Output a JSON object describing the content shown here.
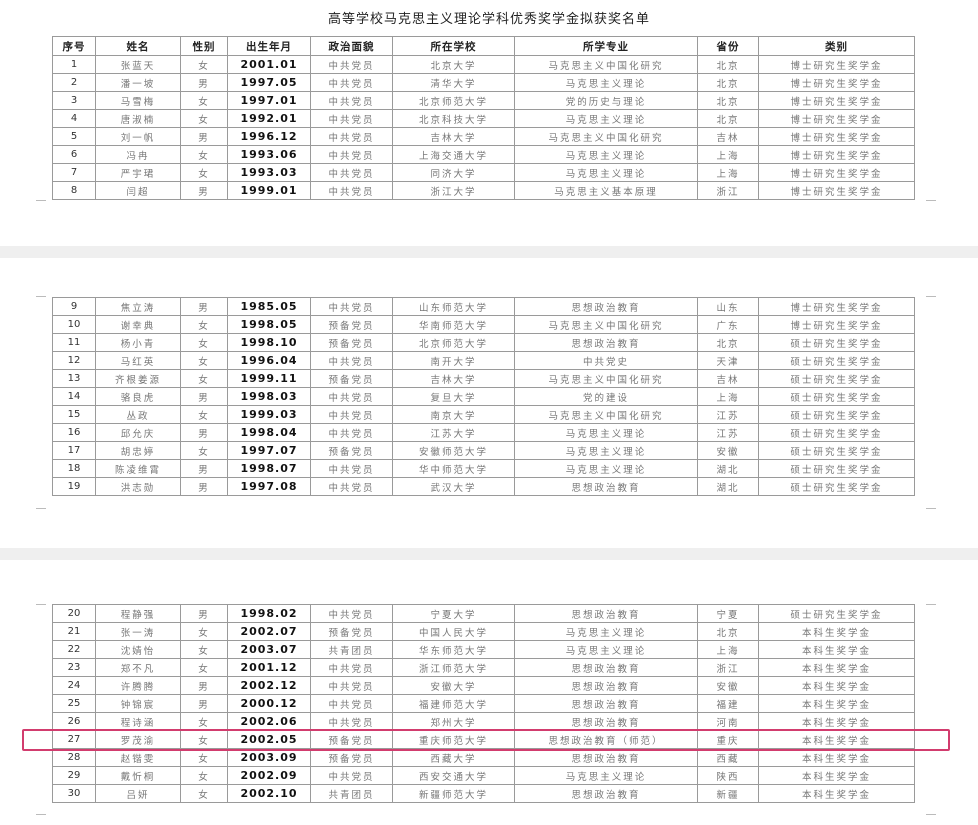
{
  "title": "高等学校马克思主义理论学科优秀奖学金拟获奖名单",
  "headers": [
    "序号",
    "姓名",
    "性别",
    "出生年月",
    "政治面貌",
    "所在学校",
    "所学专业",
    "省份",
    "类别"
  ],
  "highlight_color": "#d23c6e",
  "highlighted_row": 27,
  "pages": [
    {
      "rows": [
        [
          "1",
          "张蓝天",
          "女",
          "2001.01",
          "中共党员",
          "北京大学",
          "马克思主义中国化研究",
          "北京",
          "博士研究生奖学金"
        ],
        [
          "2",
          "潘一坡",
          "男",
          "1997.05",
          "中共党员",
          "清华大学",
          "马克思主义理论",
          "北京",
          "博士研究生奖学金"
        ],
        [
          "3",
          "马雪梅",
          "女",
          "1997.01",
          "中共党员",
          "北京师范大学",
          "党的历史与理论",
          "北京",
          "博士研究生奖学金"
        ],
        [
          "4",
          "唐淑楠",
          "女",
          "1992.01",
          "中共党员",
          "北京科技大学",
          "马克思主义理论",
          "北京",
          "博士研究生奖学金"
        ],
        [
          "5",
          "刘一帆",
          "男",
          "1996.12",
          "中共党员",
          "吉林大学",
          "马克思主义中国化研究",
          "吉林",
          "博士研究生奖学金"
        ],
        [
          "6",
          "冯冉",
          "女",
          "1993.06",
          "中共党员",
          "上海交通大学",
          "马克思主义理论",
          "上海",
          "博士研究生奖学金"
        ],
        [
          "7",
          "严宇珺",
          "女",
          "1993.03",
          "中共党员",
          "同济大学",
          "马克思主义理论",
          "上海",
          "博士研究生奖学金"
        ],
        [
          "8",
          "闫超",
          "男",
          "1999.01",
          "中共党员",
          "浙江大学",
          "马克思主义基本原理",
          "浙江",
          "博士研究生奖学金"
        ]
      ]
    },
    {
      "rows": [
        [
          "9",
          "焦立涛",
          "男",
          "1985.05",
          "中共党员",
          "山东师范大学",
          "思想政治教育",
          "山东",
          "博士研究生奖学金"
        ],
        [
          "10",
          "谢幸典",
          "女",
          "1998.05",
          "预备党员",
          "华南师范大学",
          "马克思主义中国化研究",
          "广东",
          "博士研究生奖学金"
        ],
        [
          "11",
          "杨小青",
          "女",
          "1998.10",
          "预备党员",
          "北京师范大学",
          "思想政治教育",
          "北京",
          "硕士研究生奖学金"
        ],
        [
          "12",
          "马红英",
          "女",
          "1996.04",
          "中共党员",
          "南开大学",
          "中共党史",
          "天津",
          "硕士研究生奖学金"
        ],
        [
          "13",
          "齐根姜源",
          "女",
          "1999.11",
          "预备党员",
          "吉林大学",
          "马克思主义中国化研究",
          "吉林",
          "硕士研究生奖学金"
        ],
        [
          "14",
          "骆良虎",
          "男",
          "1998.03",
          "中共党员",
          "复旦大学",
          "党的建设",
          "上海",
          "硕士研究生奖学金"
        ],
        [
          "15",
          "丛政",
          "女",
          "1999.03",
          "中共党员",
          "南京大学",
          "马克思主义中国化研究",
          "江苏",
          "硕士研究生奖学金"
        ],
        [
          "16",
          "邱允庆",
          "男",
          "1998.04",
          "中共党员",
          "江苏大学",
          "马克思主义理论",
          "江苏",
          "硕士研究生奖学金"
        ],
        [
          "17",
          "胡忠婷",
          "女",
          "1997.07",
          "预备党员",
          "安徽师范大学",
          "马克思主义理论",
          "安徽",
          "硕士研究生奖学金"
        ],
        [
          "18",
          "陈凌维霄",
          "男",
          "1998.07",
          "中共党员",
          "华中师范大学",
          "马克思主义理论",
          "湖北",
          "硕士研究生奖学金"
        ],
        [
          "19",
          "洪志勋",
          "男",
          "1997.08",
          "中共党员",
          "武汉大学",
          "思想政治教育",
          "湖北",
          "硕士研究生奖学金"
        ]
      ]
    },
    {
      "rows": [
        [
          "20",
          "程静强",
          "男",
          "1998.02",
          "中共党员",
          "宁夏大学",
          "思想政治教育",
          "宁夏",
          "硕士研究生奖学金"
        ],
        [
          "21",
          "张一涛",
          "女",
          "2002.07",
          "预备党员",
          "中国人民大学",
          "马克思主义理论",
          "北京",
          "本科生奖学金"
        ],
        [
          "22",
          "沈婧怡",
          "女",
          "2003.07",
          "共青团员",
          "华东师范大学",
          "马克思主义理论",
          "上海",
          "本科生奖学金"
        ],
        [
          "23",
          "郑不凡",
          "女",
          "2001.12",
          "中共党员",
          "浙江师范大学",
          "思想政治教育",
          "浙江",
          "本科生奖学金"
        ],
        [
          "24",
          "许腾腾",
          "男",
          "2002.12",
          "中共党员",
          "安徽大学",
          "思想政治教育",
          "安徽",
          "本科生奖学金"
        ],
        [
          "25",
          "钟锦宸",
          "男",
          "2000.12",
          "中共党员",
          "福建师范大学",
          "思想政治教育",
          "福建",
          "本科生奖学金"
        ],
        [
          "26",
          "程诗涵",
          "女",
          "2002.06",
          "中共党员",
          "郑州大学",
          "思想政治教育",
          "河南",
          "本科生奖学金"
        ],
        [
          "27",
          "罗茂渝",
          "女",
          "2002.05",
          "预备党员",
          "重庆师范大学",
          "思想政治教育（师范）",
          "重庆",
          "本科生奖学金"
        ],
        [
          "28",
          "赵锴雯",
          "女",
          "2003.09",
          "预备党员",
          "西藏大学",
          "思想政治教育",
          "西藏",
          "本科生奖学金"
        ],
        [
          "29",
          "戴忻桐",
          "女",
          "2002.09",
          "中共党员",
          "西安交通大学",
          "马克思主义理论",
          "陕西",
          "本科生奖学金"
        ],
        [
          "30",
          "吕妍",
          "女",
          "2002.10",
          "共青团员",
          "新疆师范大学",
          "思想政治教育",
          "新疆",
          "本科生奖学金"
        ]
      ]
    }
  ]
}
